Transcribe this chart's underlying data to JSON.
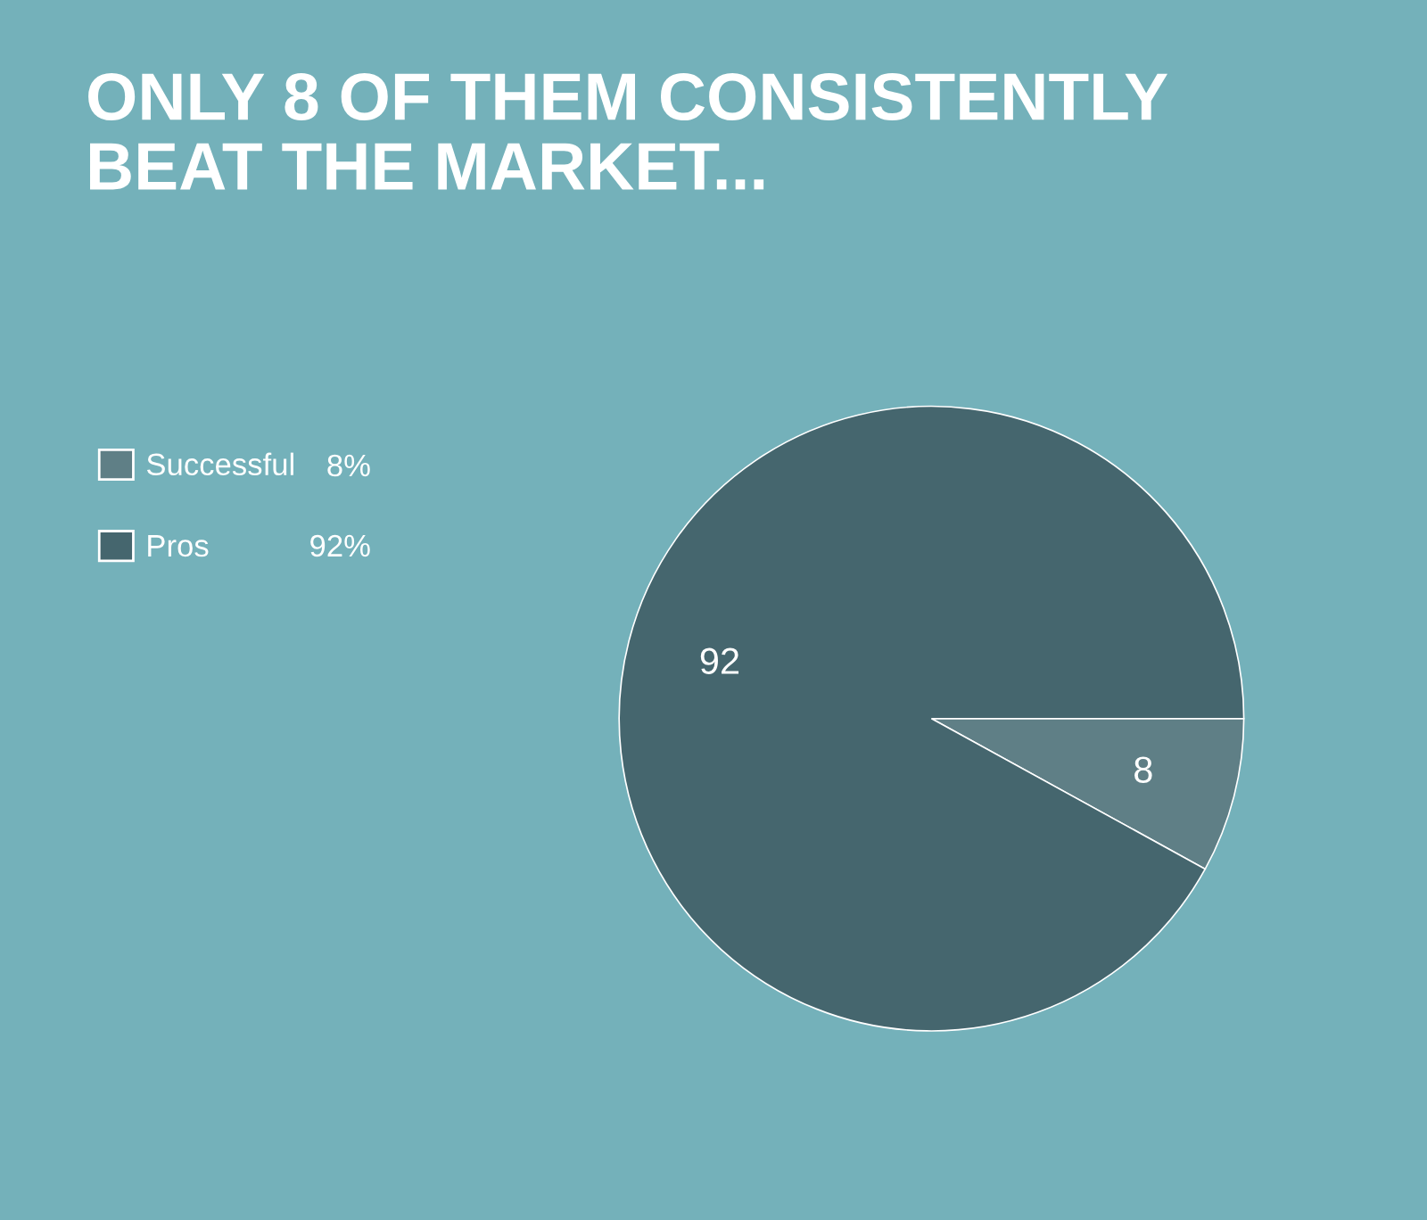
{
  "chart_data": {
    "type": "pie",
    "title": "ONLY 8 OF THEM CONSISTENTLY\nBEAT THE MARKET...",
    "categories": [
      "Successful",
      "Pros"
    ],
    "values": [
      8,
      92
    ],
    "colors": [
      "#5f7f86",
      "#45666e"
    ],
    "data_labels": true,
    "legend": "left",
    "annotations": [
      "8%",
      "92%"
    ]
  }
}
